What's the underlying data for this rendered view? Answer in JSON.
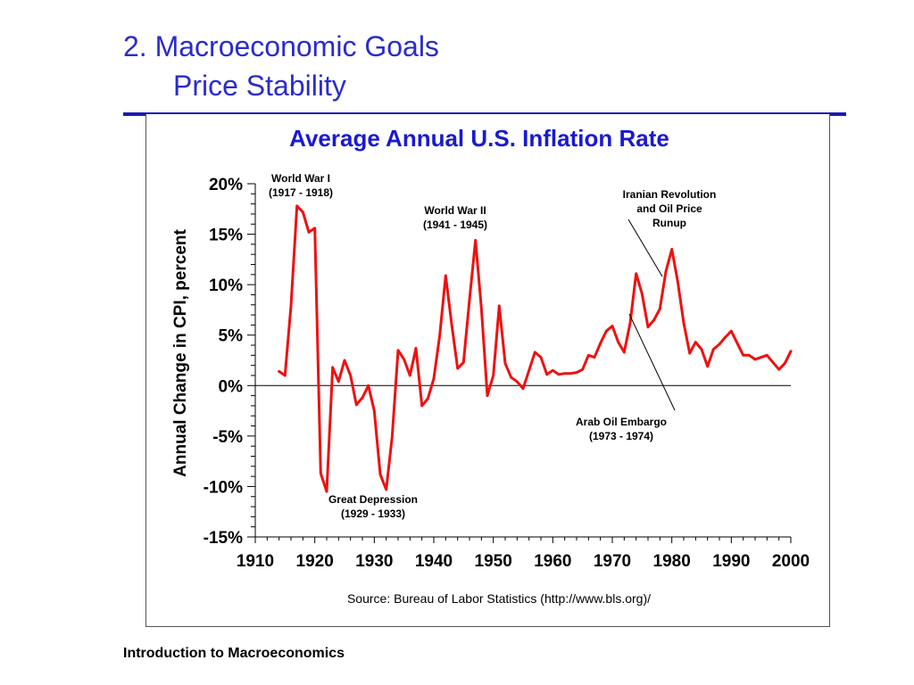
{
  "slide": {
    "title_line1": "2.  Macroeconomic Goals",
    "title_line2": "Price Stability",
    "footer": "Introduction to Macroeconomics"
  },
  "colors": {
    "title": "#2b2bcc",
    "rule": "#1a1ab8",
    "chart_title": "#1a1ad0",
    "series": "#ee1111"
  },
  "chart_data": {
    "type": "line",
    "title": "Average Annual U.S. Inflation Rate",
    "ylabel": "Annual Change in CPI, percent",
    "xlabel": "",
    "source": "Source: Bureau of Labor Statistics (http://www.bls.org)/",
    "xlim": [
      1910,
      2000
    ],
    "ylim": [
      -15,
      20
    ],
    "x_ticks": [
      "1910",
      "1920",
      "1930",
      "1940",
      "1950",
      "1960",
      "1970",
      "1980",
      "1990",
      "2000"
    ],
    "y_ticks": [
      "20%",
      "15%",
      "10%",
      "5%",
      "0%",
      "-5%",
      "-10%",
      "-15%"
    ],
    "grid": false,
    "series": [
      {
        "x": [
          1914,
          1915,
          1916,
          1917,
          1918,
          1919,
          1920,
          1921,
          1922,
          1923,
          1924,
          1925,
          1926,
          1927,
          1928,
          1929,
          1930,
          1931,
          1932,
          1933,
          1934,
          1935,
          1936,
          1937,
          1938,
          1939,
          1940,
          1941,
          1942,
          1943,
          1944,
          1945,
          1946,
          1947,
          1948,
          1949,
          1950,
          1951,
          1952,
          1953,
          1954,
          1955,
          1956,
          1957,
          1958,
          1959,
          1960,
          1961,
          1962,
          1963,
          1964,
          1965,
          1966,
          1967,
          1968,
          1969,
          1970,
          1971,
          1972,
          1973,
          1974,
          1975,
          1976,
          1977,
          1978,
          1979,
          1980,
          1981,
          1982,
          1983,
          1984,
          1985,
          1986,
          1987,
          1988,
          1989,
          1990,
          1991,
          1992,
          1993,
          1994,
          1995,
          1996,
          1997,
          1998,
          1999,
          2000
        ],
        "y": [
          1.4,
          1.0,
          7.9,
          17.8,
          17.2,
          15.2,
          15.6,
          -8.7,
          -10.5,
          1.8,
          0.4,
          2.5,
          1.0,
          -1.9,
          -1.2,
          0.0,
          -2.5,
          -8.8,
          -10.3,
          -5.1,
          3.5,
          2.6,
          1.0,
          3.7,
          -2.0,
          -1.3,
          0.7,
          5.0,
          10.9,
          6.1,
          1.7,
          2.3,
          8.5,
          14.4,
          7.7,
          -1.0,
          1.0,
          7.9,
          2.2,
          0.8,
          0.4,
          -0.3,
          1.5,
          3.3,
          2.8,
          1.1,
          1.5,
          1.1,
          1.2,
          1.2,
          1.3,
          1.6,
          3.0,
          2.8,
          4.2,
          5.4,
          5.9,
          4.3,
          3.3,
          6.2,
          11.1,
          9.1,
          5.8,
          6.5,
          7.6,
          11.3,
          13.5,
          10.3,
          6.2,
          3.2,
          4.3,
          3.6,
          1.9,
          3.6,
          4.1,
          4.8,
          5.4,
          4.2,
          3.0,
          3.0,
          2.6,
          2.8,
          3.0,
          2.3,
          1.6,
          2.2,
          3.4
        ]
      }
    ],
    "annotations": [
      {
        "id": "ww1",
        "line1": "World War I",
        "line2": "(1917 - 1918)"
      },
      {
        "id": "ww2",
        "line1": "World War II",
        "line2": "(1941 - 1945)"
      },
      {
        "id": "iran",
        "line1": "Iranian Revolution",
        "line2": "and Oil Price",
        "line3": "Runup"
      },
      {
        "id": "arab",
        "line1": "Arab Oil Embargo",
        "line2": "(1973 - 1974)"
      },
      {
        "id": "depression",
        "line1": "Great Depression",
        "line2": "(1929 - 1933)"
      }
    ]
  }
}
